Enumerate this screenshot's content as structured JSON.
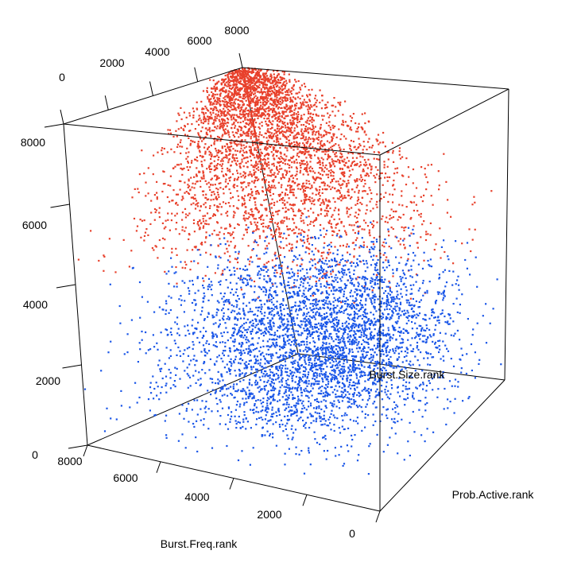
{
  "chart_data": {
    "type": "scatter",
    "dimensions": 3,
    "axes": {
      "x": {
        "label": "Burst.Freq.rank",
        "ticks": [
          "0",
          "2000",
          "4000",
          "6000",
          "8000"
        ],
        "range": [
          0,
          8000
        ]
      },
      "y": {
        "label": "Prob.Active.rank",
        "ticks": [
          "0",
          "2000",
          "4000",
          "6000",
          "8000"
        ],
        "range": [
          0,
          8000
        ]
      },
      "z": {
        "label": "Burst.Size.rank",
        "ticks": [
          "2000",
          "4000",
          "6000",
          "8000"
        ],
        "range": [
          0,
          8000
        ]
      }
    },
    "back_ticks": [
      "0",
      "2000",
      "4000",
      "6000",
      "8000"
    ],
    "left_partial_tick": "0",
    "groups": [
      {
        "color": "#e8412c",
        "z_range": [
          4000,
          8000
        ],
        "approx_count": 4000,
        "x_center_high_z": 7700,
        "y_center_high_z": 7700
      },
      {
        "color": "#1a56e8",
        "z_range": [
          0,
          4000
        ],
        "approx_count": 4000
      }
    ],
    "grid": false,
    "legend": "none"
  }
}
